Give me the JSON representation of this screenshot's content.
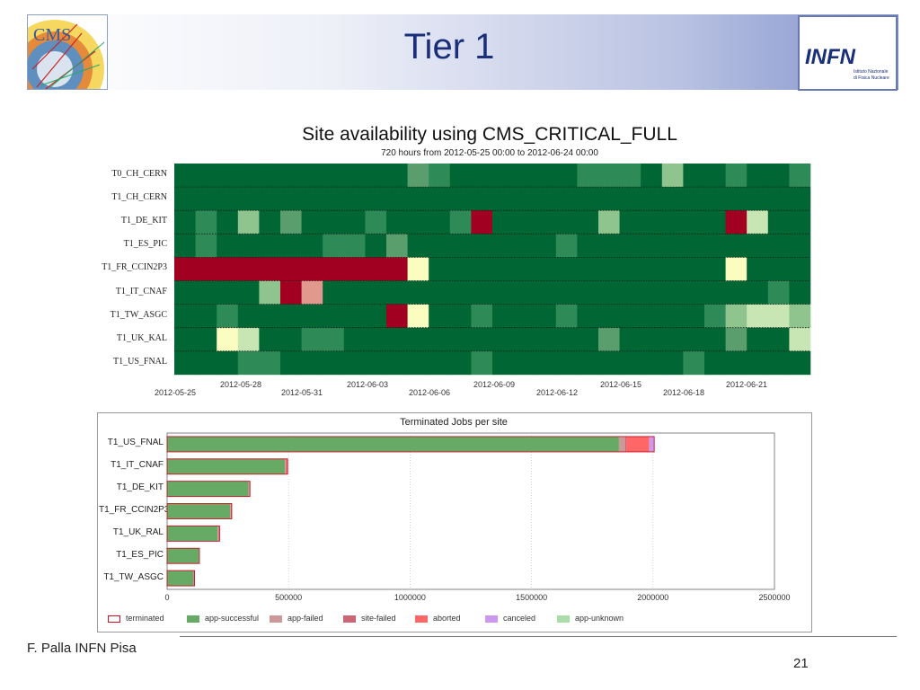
{
  "slide": {
    "title": "Tier 1",
    "footer": "F. Palla INFN Pisa",
    "page_number": "21"
  },
  "logos": {
    "cms_text": "CMS",
    "infn_text": "INFN",
    "infn_sub1": "Istituto Nazionale",
    "infn_sub2": "di Fisica Nucleare"
  },
  "colors": {
    "ok": "#006633",
    "ok_light": "#2e8b57",
    "ok_mid": "#5a9e6e",
    "warn": "#8fc48e",
    "warn_light": "#c7e6b3",
    "pale": "#fbfdc0",
    "error": "#a10021",
    "error_light": "#e0998c"
  },
  "chart_data": [
    {
      "type": "heatmap",
      "title": "Site availability using CMS_CRITICAL_FULL",
      "subtitle": "720 hours from 2012-05-25 00:00 to 2012-06-24 00:00",
      "sites": [
        "T0_CH_CERN",
        "T1_CH_CERN",
        "T1_DE_KIT",
        "T1_ES_PIC",
        "T1_FR_CCIN2P3",
        "T1_IT_CNAF",
        "T1_TW_ASGC",
        "T1_UK_KAL",
        "T1_US_FNAL"
      ],
      "x_labels_lower": [
        "2012-05-25",
        "2012-05-31",
        "2012-06-06",
        "2012-06-12",
        "2012-06-18"
      ],
      "x_labels_upper": [
        "2012-05-28",
        "2012-06-03",
        "2012-06-09",
        "2012-06-15",
        "2012-06-21"
      ],
      "n_bins": 30,
      "legend": {
        "0": "ok",
        "1": "ok_light",
        "2": "ok_mid",
        "3": "warn",
        "4": "warn_light",
        "5": "pale",
        "6": "error",
        "7": "error_light"
      },
      "rows": [
        [
          0,
          0,
          0,
          0,
          0,
          0,
          0,
          0,
          0,
          0,
          0,
          2,
          1,
          0,
          0,
          0,
          0,
          0,
          0,
          1,
          1,
          1,
          0,
          3,
          0,
          0,
          1,
          0,
          0,
          1
        ],
        [
          0,
          0,
          0,
          0,
          0,
          0,
          0,
          0,
          0,
          0,
          0,
          0,
          0,
          0,
          0,
          0,
          0,
          0,
          0,
          0,
          0,
          0,
          0,
          0,
          0,
          0,
          0,
          0,
          0,
          0
        ],
        [
          0,
          1,
          0,
          3,
          0,
          2,
          0,
          0,
          0,
          1,
          0,
          0,
          0,
          1,
          6,
          0,
          0,
          0,
          0,
          0,
          3,
          0,
          0,
          0,
          0,
          0,
          6,
          4,
          0,
          0
        ],
        [
          0,
          1,
          0,
          0,
          0,
          0,
          0,
          1,
          1,
          0,
          2,
          0,
          0,
          0,
          0,
          0,
          0,
          0,
          1,
          0,
          0,
          0,
          0,
          0,
          0,
          0,
          0,
          0,
          0,
          0
        ],
        [
          6,
          6,
          6,
          6,
          6,
          6,
          6,
          6,
          6,
          6,
          6,
          5,
          0,
          0,
          0,
          0,
          0,
          0,
          0,
          0,
          0,
          0,
          0,
          0,
          0,
          0,
          5,
          0,
          0,
          0
        ],
        [
          0,
          0,
          0,
          0,
          3,
          6,
          7,
          0,
          0,
          0,
          0,
          0,
          0,
          0,
          0,
          0,
          0,
          0,
          0,
          0,
          0,
          0,
          0,
          0,
          0,
          0,
          0,
          0,
          1,
          0
        ],
        [
          0,
          0,
          1,
          0,
          0,
          0,
          0,
          0,
          0,
          0,
          6,
          5,
          0,
          0,
          1,
          0,
          0,
          0,
          1,
          0,
          0,
          0,
          0,
          0,
          0,
          1,
          3,
          4,
          4,
          3
        ],
        [
          0,
          0,
          5,
          4,
          0,
          0,
          1,
          1,
          0,
          0,
          0,
          0,
          0,
          0,
          0,
          0,
          0,
          0,
          0,
          0,
          2,
          0,
          0,
          0,
          0,
          0,
          2,
          0,
          0,
          4
        ],
        [
          0,
          0,
          0,
          1,
          1,
          0,
          0,
          0,
          0,
          0,
          0,
          0,
          0,
          0,
          1,
          0,
          0,
          0,
          0,
          0,
          0,
          0,
          0,
          0,
          1,
          0,
          0,
          0,
          0,
          0
        ]
      ]
    },
    {
      "type": "bar",
      "orientation": "horizontal",
      "stacked": true,
      "title": "Terminated Jobs per site",
      "categories": [
        "T1_US_FNAL",
        "T1_IT_CNAF",
        "T1_DE_KIT",
        "T1_FR_CCIN2P3",
        "T1_UK_RAL",
        "T1_ES_PIC",
        "T1_TW_ASGC"
      ],
      "xlim": [
        0,
        2500000
      ],
      "xticks": [
        "0",
        "500000",
        "1000000",
        "1500000",
        "2000000",
        "2500000"
      ],
      "series": [
        {
          "name": "app-successful",
          "color": "#66aa66",
          "values": [
            1860000,
            485000,
            335000,
            260000,
            208000,
            131000,
            108000
          ]
        },
        {
          "name": "app-failed",
          "color": "#cc9999",
          "values": [
            25000,
            3000,
            2000,
            2000,
            2000,
            1000,
            1000
          ]
        },
        {
          "name": "site-failed",
          "color": "#cc6677",
          "values": [
            5000,
            3000,
            2000,
            3000,
            3000,
            1000,
            3000
          ]
        },
        {
          "name": "aborted",
          "color": "#ff6666",
          "values": [
            95000,
            5000,
            2000,
            1000,
            3000,
            0,
            1000
          ]
        },
        {
          "name": "canceled",
          "color": "#cc99ee",
          "values": [
            20000,
            0,
            0,
            0,
            0,
            0,
            0
          ]
        },
        {
          "name": "app-unknown",
          "color": "#aaddaa",
          "values": [
            0,
            0,
            0,
            0,
            0,
            0,
            0
          ]
        }
      ],
      "legend": [
        "terminated",
        "app-successful",
        "app-failed",
        "site-failed",
        "aborted",
        "canceled",
        "app-unknown"
      ]
    }
  ]
}
